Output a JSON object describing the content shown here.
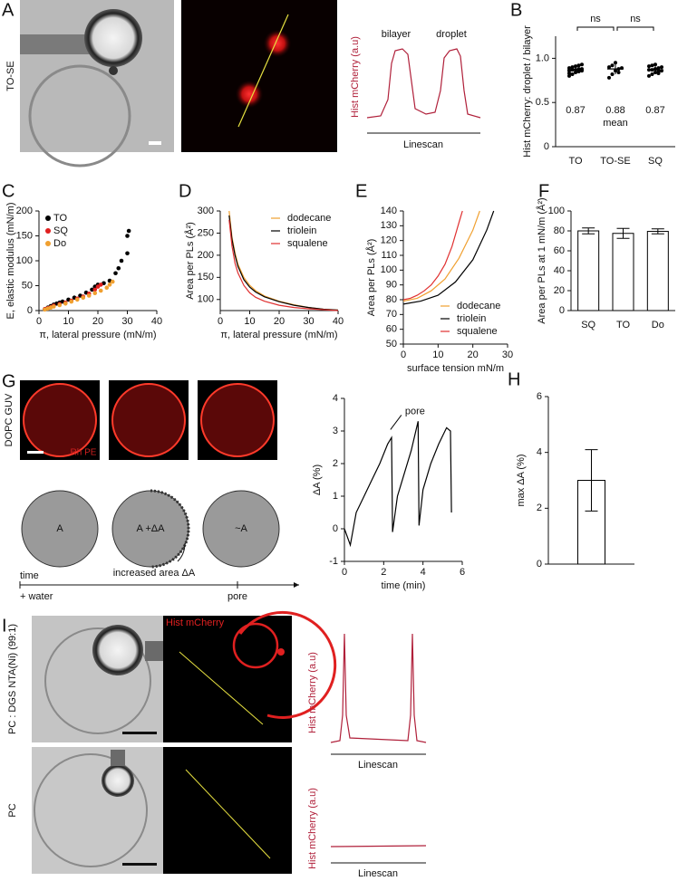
{
  "panel_labels": {
    "a": "A",
    "b": "B",
    "c": "C",
    "d": "D",
    "e": "E",
    "f": "F",
    "g": "G",
    "h": "H",
    "i": "I"
  },
  "panel_a": {
    "row_label": "TO-SE",
    "profile_ylabel": "Hist mCherry (a.u)",
    "peak_labels": [
      "bilayer",
      "droplet"
    ],
    "profile_xlabel": "Linescan"
  },
  "panel_g": {
    "row_label": "DOPC GUV",
    "dye": "Rh PE",
    "states": [
      "A",
      "A +ΔA",
      "~A"
    ],
    "annotation": "increased area ΔA",
    "timeline": [
      "time",
      "+ water",
      "pore"
    ]
  },
  "panel_i": {
    "rows": [
      "PC : DGS NTA(Ni) (99:1)",
      "PC"
    ],
    "channel": "Hist mCherry",
    "profile_ylabel": "Hist mCherry (a.u)",
    "profile_xlabel": "Linescan"
  },
  "chart_data": [
    {
      "type": "strip",
      "ylabel": "Hist mCherry: droplet / bilayer",
      "categories": [
        "TO",
        "TO-SE",
        "SQ"
      ],
      "points": [
        [
          0.8,
          0.82,
          0.84,
          0.85,
          0.86,
          0.86,
          0.87,
          0.87,
          0.88,
          0.88,
          0.89,
          0.9,
          0.91,
          0.92,
          0.93,
          0.83
        ],
        [
          0.78,
          0.82,
          0.86,
          0.88,
          0.89,
          0.9,
          0.92,
          0.95,
          0.84
        ],
        [
          0.8,
          0.82,
          0.84,
          0.85,
          0.86,
          0.87,
          0.87,
          0.88,
          0.89,
          0.9,
          0.91,
          0.92,
          0.93,
          0.83
        ]
      ],
      "means": [
        0.87,
        0.88,
        0.87
      ],
      "errors": [
        0.04,
        0.06,
        0.04
      ],
      "mean_label": "mean",
      "annotations": [
        "ns",
        "ns"
      ],
      "ylim": [
        0,
        1.25
      ],
      "yticks": [
        0,
        0.5,
        {
          "value": 1,
          "label": "1.0"
        }
      ]
    },
    {
      "type": "scatter",
      "xlabel": "π, lateral pressure (mN/m)",
      "ylabel": "E, elastic modulus (mN/m)",
      "legend": "upper left",
      "series": [
        {
          "name": "TO",
          "color": "#000000",
          "x": [
            2,
            3,
            4,
            5,
            6,
            7,
            8,
            10,
            12,
            14,
            16,
            18,
            19,
            20,
            22,
            24,
            26,
            27,
            28,
            30,
            30,
            30.5
          ],
          "values": [
            3,
            6,
            9,
            12,
            14,
            16,
            18,
            22,
            26,
            30,
            36,
            42,
            48,
            52,
            55,
            60,
            75,
            85,
            100,
            115,
            150,
            160
          ]
        },
        {
          "name": "SQ",
          "color": "#e02020",
          "x": [
            2,
            3,
            4,
            5,
            7,
            9,
            11,
            13,
            15,
            17,
            19,
            20,
            21
          ],
          "values": [
            3,
            5,
            7,
            10,
            13,
            16,
            20,
            24,
            28,
            34,
            42,
            48,
            52
          ]
        },
        {
          "name": "Do",
          "color": "#f0a030",
          "x": [
            2,
            3,
            4,
            5,
            7,
            9,
            11,
            13,
            15,
            17,
            19,
            21,
            23,
            24,
            25
          ],
          "values": [
            2,
            4,
            6,
            8,
            11,
            14,
            18,
            22,
            26,
            30,
            35,
            40,
            46,
            52,
            58
          ]
        }
      ],
      "xlim": [
        0,
        40
      ],
      "xticks": [
        0,
        10,
        20,
        30,
        40
      ],
      "ylim": [
        0,
        200
      ],
      "yticks": [
        0,
        50,
        100,
        150,
        200
      ]
    },
    {
      "type": "line",
      "xlabel": "π, lateral pressure (mN/m)",
      "ylabel": "Area per PLs (Å²)",
      "legend": "upper right",
      "series": [
        {
          "name": "dodecane",
          "color": "#f0a030",
          "x": [
            3,
            4,
            5,
            6,
            8,
            10,
            12,
            15,
            20,
            25,
            30,
            35,
            40
          ],
          "values": [
            300,
            240,
            205,
            180,
            150,
            132,
            120,
            108,
            96,
            88,
            82,
            78,
            76
          ]
        },
        {
          "name": "triolein",
          "color": "#000000",
          "x": [
            3,
            4,
            5,
            6,
            8,
            10,
            12,
            15,
            20,
            25,
            30,
            35,
            40
          ],
          "values": [
            290,
            235,
            200,
            175,
            145,
            128,
            117,
            106,
            95,
            87,
            82,
            78,
            76
          ]
        },
        {
          "name": "squalene",
          "color": "#e03030",
          "x": [
            3,
            4,
            5,
            6,
            8,
            10,
            12,
            15,
            20,
            25,
            30,
            35,
            40
          ],
          "values": [
            280,
            220,
            182,
            160,
            132,
            115,
            105,
            96,
            87,
            82,
            79,
            77,
            75
          ]
        }
      ],
      "xlim": [
        0,
        40
      ],
      "xticks": [
        0,
        10,
        20,
        30,
        40
      ],
      "ylim": [
        75,
        300
      ],
      "yticks": [
        100,
        150,
        200,
        250,
        300
      ]
    },
    {
      "type": "line",
      "xlabel": "surface tension mN/m",
      "ylabel": "Area per PLs (Å²)",
      "legend": "lower right",
      "series": [
        {
          "name": "dodecane",
          "color": "#f0a030",
          "x": [
            0,
            4,
            8,
            12,
            16,
            20,
            22
          ],
          "values": [
            79,
            81,
            86,
            94,
            108,
            127,
            140
          ]
        },
        {
          "name": "triolein",
          "color": "#000000",
          "x": [
            0,
            5,
            10,
            15,
            20,
            24,
            26
          ],
          "values": [
            77,
            79,
            83,
            92,
            107,
            127,
            140
          ]
        },
        {
          "name": "squalene",
          "color": "#e03030",
          "x": [
            0,
            2,
            4,
            6,
            8,
            10,
            12,
            14,
            16,
            17
          ],
          "values": [
            80,
            81,
            83,
            86,
            90,
            96,
            104,
            116,
            132,
            140
          ]
        }
      ],
      "xlim": [
        0,
        30
      ],
      "xticks": [
        0,
        10,
        20,
        30
      ],
      "ylim": [
        50,
        140
      ],
      "yticks": [
        50,
        60,
        70,
        80,
        90,
        100,
        110,
        120,
        130,
        140
      ]
    },
    {
      "type": "bar",
      "ylabel": "Area per PLs at 1 mN/m (Å²)",
      "categories": [
        "SQ",
        "TO",
        "Do"
      ],
      "values": [
        80,
        77.5,
        79.5
      ],
      "errors": [
        3,
        5,
        2.5
      ],
      "color": "#ffffff",
      "ylim": [
        0,
        100
      ],
      "yticks": [
        0,
        20,
        40,
        60,
        80,
        100
      ]
    },
    {
      "type": "line",
      "xlabel": "time  (min)",
      "ylabel": "ΔA  (%)",
      "annotation": "pore",
      "color": "#000000",
      "x": [
        0,
        0.3,
        0.6,
        1,
        1.4,
        1.8,
        2.2,
        2.4,
        2.45,
        2.7,
        3,
        3.4,
        3.75,
        3.8,
        4,
        4.4,
        4.8,
        5.2,
        5.4,
        5.45
      ],
      "values": [
        0,
        -0.5,
        0.5,
        1,
        1.5,
        2,
        2.6,
        2.8,
        -0.1,
        1,
        1.6,
        2.4,
        3.3,
        0.1,
        1.2,
        2,
        2.6,
        3.1,
        3,
        0.5
      ],
      "xlim": [
        0,
        6
      ],
      "xticks": [
        0,
        2,
        4,
        6
      ],
      "ylim": [
        -1,
        4
      ],
      "yticks": [
        -1,
        0,
        1,
        2,
        3,
        4
      ]
    },
    {
      "type": "bar",
      "ylabel": "max ΔA  (%)",
      "categories": [
        null
      ],
      "values": [
        3
      ],
      "errors": [
        1.1
      ],
      "color": "#ffffff",
      "ylim": [
        0,
        6
      ],
      "yticks": [
        0,
        2,
        4,
        6
      ]
    }
  ]
}
